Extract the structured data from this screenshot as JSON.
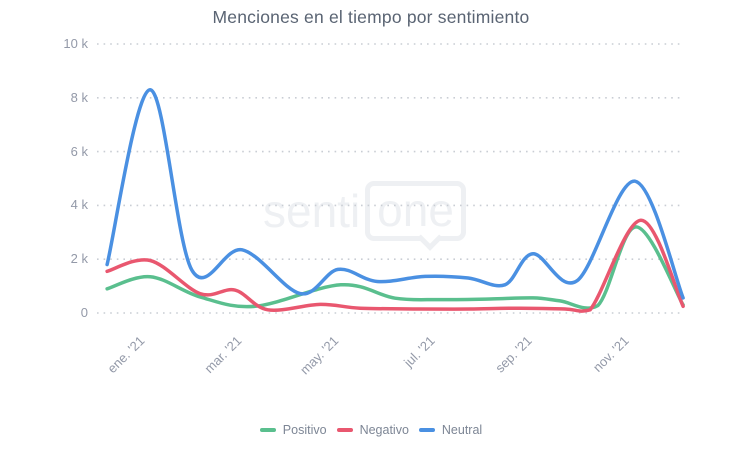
{
  "watermark": {
    "part1": "senti",
    "part2": "one"
  },
  "chart_data": {
    "type": "line",
    "title": "Menciones en el tiempo por sentimiento",
    "xlabel": "",
    "ylabel": "",
    "x_axis": {
      "tick_labels": [
        "ene. '21",
        "mar. '21",
        "may. '21",
        "jul. '21",
        "sep. '21",
        "nov. '21"
      ],
      "tick_months": [
        0,
        2,
        4,
        6,
        8,
        10
      ],
      "range_months": [
        -0.37,
        11.53
      ]
    },
    "y_axis": {
      "tick_labels": [
        "0",
        "2 k",
        "4 k",
        "6 k",
        "8 k",
        "10 k"
      ],
      "tick_values": [
        0,
        2000,
        4000,
        6000,
        8000,
        10000
      ],
      "range": [
        0,
        10000
      ]
    },
    "grid": "horizontal-dotted",
    "legend_position": "bottom",
    "series": [
      {
        "name": "Positivo",
        "color": "#5abf8e",
        "points": [
          [
            -0.37,
            900
          ],
          [
            0.52,
            1350
          ],
          [
            1.55,
            600
          ],
          [
            2.69,
            250
          ],
          [
            4.46,
            1050
          ],
          [
            5.58,
            550
          ],
          [
            6.51,
            500
          ],
          [
            7.54,
            520
          ],
          [
            8.43,
            560
          ],
          [
            8.99,
            450
          ],
          [
            9.77,
            280
          ],
          [
            10.56,
            3200
          ],
          [
            11.53,
            300
          ]
        ]
      },
      {
        "name": "Negativo",
        "color": "#e9576f",
        "points": [
          [
            -0.37,
            1550
          ],
          [
            0.52,
            1950
          ],
          [
            1.55,
            720
          ],
          [
            2.27,
            850
          ],
          [
            2.95,
            120
          ],
          [
            4.03,
            320
          ],
          [
            4.86,
            180
          ],
          [
            6.1,
            150
          ],
          [
            7.13,
            150
          ],
          [
            8.16,
            180
          ],
          [
            9.09,
            150
          ],
          [
            9.61,
            120
          ],
          [
            10.66,
            3450
          ],
          [
            11.53,
            250
          ]
        ]
      },
      {
        "name": "Neutral",
        "color": "#4a90e2",
        "points": [
          [
            -0.37,
            1800
          ],
          [
            0.52,
            8300
          ],
          [
            1.38,
            1600
          ],
          [
            2.42,
            2350
          ],
          [
            3.62,
            720
          ],
          [
            4.4,
            1620
          ],
          [
            5.21,
            1170
          ],
          [
            6.2,
            1360
          ],
          [
            7.09,
            1300
          ],
          [
            7.85,
            1050
          ],
          [
            8.43,
            2200
          ],
          [
            9.34,
            1200
          ],
          [
            10.54,
            4900
          ],
          [
            11.53,
            560
          ]
        ]
      }
    ],
    "grid_color": "#c9cdd4"
  }
}
